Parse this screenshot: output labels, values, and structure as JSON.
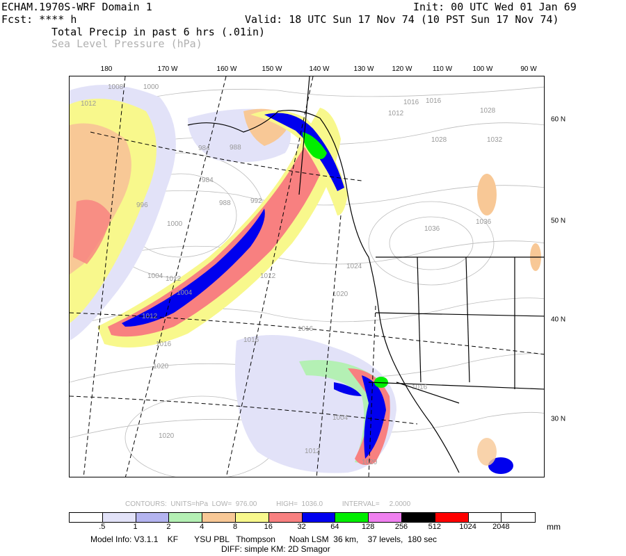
{
  "header": {
    "model": "ECHAM.1970S-WRF Domain 1",
    "init": "Init: 00 UTC Wed 01 Jan 69",
    "fcst": "Fcst: **** h",
    "valid": "Valid: 18 UTC Sun 17 Nov 74 (10 PST Sun 17 Nov 74)",
    "field1": "Total Precip in past 6 hrs (.01in)",
    "field2": "Sea Level Pressure (hPa)"
  },
  "map": {
    "longitude_labels": [
      "180",
      "170 W",
      "160 W",
      "150 W",
      "140 W",
      "130 W",
      "120 W",
      "110 W",
      "100 W",
      "90 W"
    ],
    "latitude_labels": [
      "60 N",
      "50 N",
      "40 N",
      "30 N"
    ],
    "pressure_labels": [
      "1008",
      "1000",
      "1012",
      "1016",
      "1012",
      "1016",
      "1028",
      "1032",
      "1028",
      "984",
      "988",
      "984",
      "988",
      "992",
      "996",
      "1000",
      "1004",
      "1004",
      "1012",
      "1016",
      "1020",
      "1024",
      "1020",
      "1036",
      "1036",
      "1012",
      "1016",
      "1016",
      "1020",
      "1004",
      "1012",
      "1020",
      "1016",
      "1012"
    ]
  },
  "contours": {
    "text": "CONTOURS:  UNITS=hPa  LOW=  976.00          HIGH=  1036.0          INTERVAL=     2.0000"
  },
  "colorbar": {
    "colors": [
      "#ffffff",
      "#e2e2f8",
      "#b4b4f0",
      "#b4f0b4",
      "#f8c896",
      "#f8f88c",
      "#f88080",
      "#0000ee",
      "#00ee00",
      "#f080f0",
      "#000000",
      "#ff0000",
      "#ffffff",
      "#ffffff"
    ],
    "labels": [
      ".5",
      "1",
      "2",
      "4",
      "8",
      "16",
      "32",
      "64",
      "128",
      "256",
      "512",
      "1024",
      "2048"
    ],
    "units": "mm"
  },
  "footer": {
    "line1": "Model Info: V3.1.1    KF       YSU PBL   Thompson      Noah LSM  36 km,    37 levels,  180 sec",
    "line2": "DIFF: simple KM: 2D Smagor"
  }
}
